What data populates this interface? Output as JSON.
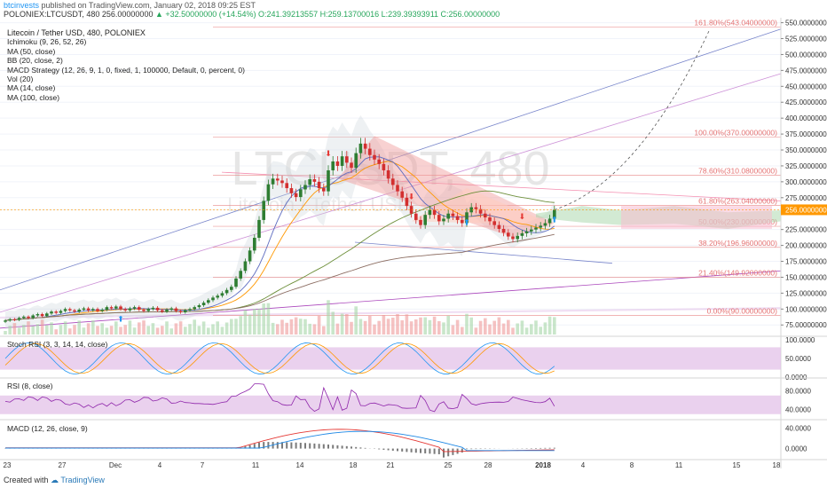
{
  "header": {
    "user": "btcinvests",
    "published": "published on TradingView.com, January 02, 2018 09:25 EST",
    "symbol": "POLONIEX:LTCUSDT, 480",
    "price": "256.00000000",
    "change": "+32.50000000 (+14.54%)",
    "ohlc": "O:241.39213557 H:259.13700016 L:239.39393911 C:256.00000000"
  },
  "legend": {
    "title": "Litecoin / Tether USD, 480, POLONIEX",
    "items": [
      "Ichimoku (9, 26, 52, 26)",
      "MA (50, close)",
      "BB (20, close, 2)",
      "MACD Strategy (12, 26, 9, 1, 0, fixed, 1, 100000, Default, 0, percent, 0)",
      "Vol (20)",
      "MA (14, close)",
      "MA (100, close)"
    ]
  },
  "watermark": {
    "main": "LTCUSDT, 480",
    "sub": "Litecoin / Tether USD"
  },
  "panels": {
    "stoch": "Stoch RSI (3, 3, 14, 14, close)",
    "rsi": "RSI (8, close)",
    "macd": "MACD (12, 26, close, 9)"
  },
  "footer": {
    "created": "Created with",
    "brand": "TradingView"
  },
  "colors": {
    "up": "#2e7d32",
    "down": "#d32f2f",
    "fib": "#e57373",
    "price_tag": "#ff9800",
    "ichimoku_cloud": "#a5d6a7",
    "bb_fill": "#cfd8dc",
    "band_fill": "#e1bee7"
  },
  "chart_data": {
    "type": "candlestick",
    "price_axis": {
      "min": 60,
      "max": 555,
      "ticks": [
        "550.00000000",
        "525.00000000",
        "500.00000000",
        "475.00000000",
        "450.00000000",
        "425.00000000",
        "400.00000000",
        "375.00000000",
        "350.00000000",
        "325.00000000",
        "300.00000000",
        "275.00000000",
        "256.00000000",
        "225.00000000",
        "200.00000000",
        "175.00000000",
        "150.00000000",
        "125.00000000",
        "100.00000000",
        "75.00000000"
      ],
      "last_price": 256
    },
    "x_ticks": [
      "23",
      "27",
      "Dec",
      "4",
      "7",
      "11",
      "14",
      "18",
      "21",
      "25",
      "28",
      "2018",
      "4",
      "8",
      "11",
      "15",
      "18"
    ],
    "fib_levels": [
      {
        "label": "161.80%(543.04000000)",
        "value": 543.04
      },
      {
        "label": "100.00%(370.00000000)",
        "value": 370
      },
      {
        "label": "78.60%(310.08000000)",
        "value": 310.08
      },
      {
        "label": "61.80%(263.04000000)",
        "value": 263.04
      },
      {
        "label": "50.00%(230.00000000)",
        "value": 230
      },
      {
        "label": "38.20%(196.96000000)",
        "value": 196.96
      },
      {
        "label": "21.40%(149.92000000)",
        "value": 149.92
      },
      {
        "label": "0.00%(90.00000000)",
        "value": 90
      }
    ],
    "closes": [
      82,
      84,
      83,
      86,
      88,
      86,
      90,
      92,
      89,
      93,
      96,
      94,
      97,
      100,
      98,
      96,
      99,
      101,
      98,
      100,
      97,
      99,
      103,
      101,
      104,
      100,
      98,
      101,
      103,
      99,
      97,
      100,
      102,
      98,
      96,
      99,
      101,
      97,
      95,
      98,
      100,
      103,
      106,
      110,
      114,
      118,
      121,
      125,
      130,
      135,
      148,
      160,
      175,
      192,
      212,
      240,
      270,
      296,
      305,
      302,
      298,
      290,
      282,
      276,
      288,
      295,
      304,
      300,
      290,
      285,
      318,
      332,
      325,
      340,
      330,
      322,
      345,
      360,
      352,
      342,
      335,
      328,
      318,
      305,
      295,
      285,
      275,
      262,
      250,
      240,
      232,
      248,
      256,
      248,
      238,
      242,
      250,
      246,
      240,
      235,
      252,
      260,
      257,
      250,
      244,
      238,
      232,
      226,
      220,
      214,
      210,
      215,
      219,
      222,
      225,
      228,
      231,
      235,
      242,
      256
    ],
    "stoch_axis": {
      "ticks": [
        "100.0000",
        "50.0000",
        "0.0000"
      ]
    },
    "rsi_axis": {
      "ticks": [
        "80.0000",
        "40.0000"
      ]
    },
    "macd_axis": {
      "ticks": [
        "40.0000",
        "0.0000"
      ]
    }
  }
}
